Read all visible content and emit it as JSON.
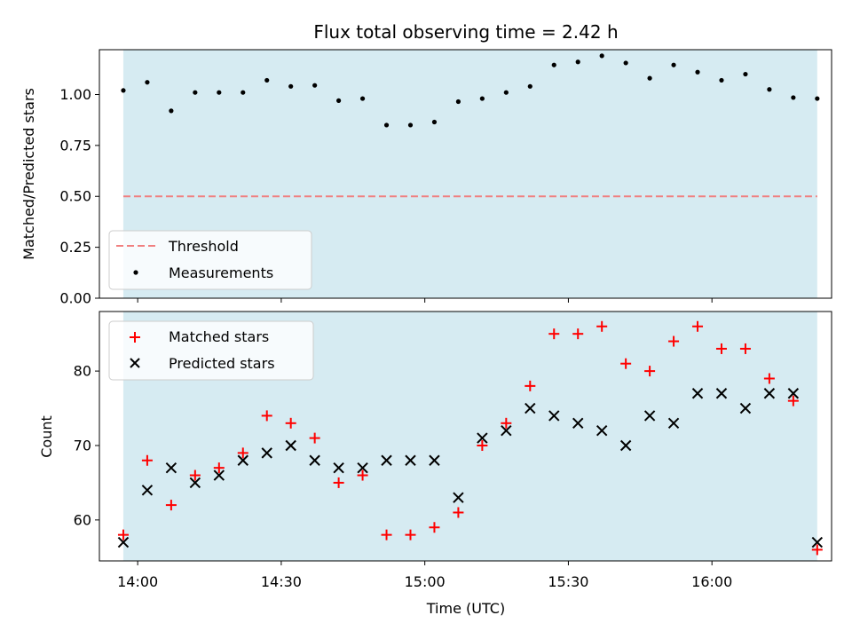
{
  "title": "Flux total observing time = 2.42 h",
  "colors": {
    "shade": "#add8e6",
    "threshold": "#f08080",
    "measurement": "#000000",
    "matched": "#ff0000",
    "predicted": "#000000"
  },
  "chart_data": [
    {
      "type": "scatter",
      "panel": "top",
      "ylabel": "Matched/Predicted stars",
      "ylim": [
        0.0,
        1.22
      ],
      "yticks": [
        "0.00",
        "0.25",
        "0.50",
        "0.75",
        "1.00"
      ],
      "x_range_minutes_utc": [
        "13:52",
        "16:25"
      ],
      "shaded_interval": [
        "13:57",
        "16:22"
      ],
      "threshold": 0.5,
      "legend": {
        "threshold_label": "Threshold",
        "measurements_label": "Measurements",
        "placement": "lower-left"
      },
      "x": [
        "13:57",
        "14:02",
        "14:07",
        "14:12",
        "14:17",
        "14:22",
        "14:27",
        "14:32",
        "14:37",
        "14:42",
        "14:47",
        "14:52",
        "14:57",
        "15:02",
        "15:07",
        "15:12",
        "15:17",
        "15:22",
        "15:27",
        "15:32",
        "15:37",
        "15:42",
        "15:47",
        "15:52",
        "15:57",
        "16:02",
        "16:07",
        "16:12",
        "16:17",
        "16:22"
      ],
      "values": [
        1.02,
        1.06,
        0.92,
        1.01,
        1.01,
        1.01,
        1.07,
        1.04,
        1.045,
        0.97,
        0.98,
        0.85,
        0.85,
        0.865,
        0.965,
        0.98,
        1.01,
        1.04,
        1.145,
        1.16,
        1.19,
        1.155,
        1.08,
        1.145,
        1.11,
        1.07,
        1.1,
        1.025,
        0.985,
        0.98
      ]
    },
    {
      "type": "scatter",
      "panel": "bottom",
      "xlabel": "Time (UTC)",
      "ylabel": "Count",
      "ylim": [
        54.5,
        88
      ],
      "yticks": [
        "60",
        "70",
        "80"
      ],
      "xticks": [
        "14:00",
        "14:30",
        "15:00",
        "15:30",
        "16:00"
      ],
      "legend": {
        "matched_label": "Matched stars",
        "predicted_label": "Predicted stars",
        "placement": "upper-left"
      },
      "x": [
        "13:57",
        "14:02",
        "14:07",
        "14:12",
        "14:17",
        "14:22",
        "14:27",
        "14:32",
        "14:37",
        "14:42",
        "14:47",
        "14:52",
        "14:57",
        "15:02",
        "15:07",
        "15:12",
        "15:17",
        "15:22",
        "15:27",
        "15:32",
        "15:37",
        "15:42",
        "15:47",
        "15:52",
        "15:57",
        "16:02",
        "16:07",
        "16:12",
        "16:17",
        "16:22"
      ],
      "series": [
        {
          "name": "Matched stars",
          "marker": "+",
          "values": [
            58,
            68,
            62,
            66,
            67,
            69,
            74,
            73,
            71,
            65,
            66,
            58,
            58,
            59,
            61,
            70,
            73,
            78,
            85,
            85,
            86,
            81,
            80,
            84,
            86,
            83,
            83,
            79,
            76,
            56
          ]
        },
        {
          "name": "Predicted stars",
          "marker": "x",
          "values": [
            57,
            64,
            67,
            65,
            66,
            68,
            69,
            70,
            68,
            67,
            67,
            68,
            68,
            68,
            63,
            71,
            72,
            75,
            74,
            73,
            72,
            70,
            74,
            73,
            77,
            77,
            75,
            77,
            77,
            57
          ]
        }
      ]
    }
  ]
}
